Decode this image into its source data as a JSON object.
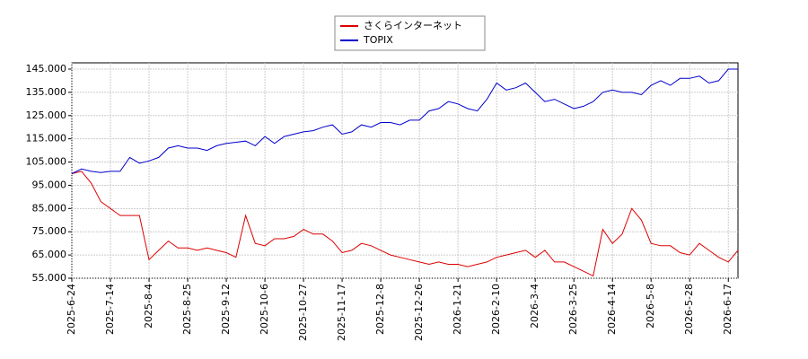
{
  "chart_data": {
    "type": "line",
    "categories": [
      "2025-6-24",
      null,
      null,
      null,
      "2025-7-14",
      null,
      null,
      null,
      "2025-8-4",
      null,
      null,
      null,
      "2025-8-25",
      null,
      null,
      null,
      "2025-9-12",
      null,
      null,
      null,
      "2025-10-6",
      null,
      null,
      null,
      "2025-10-27",
      null,
      null,
      null,
      "2025-11-17",
      null,
      null,
      null,
      "2025-12-8",
      null,
      null,
      null,
      "2025-12-26",
      null,
      null,
      null,
      "2026-1-21",
      null,
      null,
      null,
      "2026-2-10",
      null,
      null,
      null,
      "2026-3-4",
      null,
      null,
      null,
      "2026-3-25",
      null,
      null,
      null,
      "2026-4-14",
      null,
      null,
      null,
      "2026-5-8",
      null,
      null,
      null,
      "2026-5-28",
      null,
      null,
      null,
      "2026-6-17",
      null
    ],
    "series": [
      {
        "name": "さくらインターネット",
        "color": "#dd0000",
        "values": [
          100,
          101,
          96,
          88,
          85,
          82,
          82,
          82,
          63,
          67,
          71,
          68,
          68,
          67,
          68,
          67,
          66,
          64,
          82,
          70,
          69,
          72,
          72,
          73,
          76,
          74,
          74,
          71,
          66,
          67,
          70,
          69,
          67,
          65,
          64,
          63,
          62,
          61,
          62,
          61,
          61,
          60,
          61,
          62,
          64,
          65,
          66,
          67,
          64,
          67,
          62,
          62,
          60,
          58,
          56,
          76,
          70,
          74,
          85,
          80,
          70,
          69,
          69,
          66,
          65,
          70,
          67,
          64,
          62,
          67
        ]
      },
      {
        "name": "TOPIX",
        "color": "#0000cc",
        "values": [
          100,
          102,
          101,
          100.5,
          101,
          101,
          107,
          104.5,
          105.5,
          107,
          111,
          112,
          111,
          111,
          110,
          112,
          113,
          113.5,
          114,
          112,
          116,
          113,
          116,
          117,
          118,
          118.5,
          120,
          121,
          117,
          118,
          121,
          120,
          122,
          122,
          121,
          123,
          123,
          127,
          128,
          131,
          130,
          128,
          127,
          132,
          139,
          136,
          137,
          139,
          135,
          131,
          132,
          130,
          128,
          129,
          131,
          135,
          136,
          135,
          135,
          134,
          138,
          140,
          138,
          141,
          141,
          142,
          139,
          140,
          145,
          145
        ]
      }
    ],
    "ylim": [
      55,
      147.7
    ],
    "yticks": [
      {
        "value": 55,
        "label": "55.000"
      },
      {
        "value": 65,
        "label": "65.000"
      },
      {
        "value": 75,
        "label": "75.000"
      },
      {
        "value": 85,
        "label": "85.000"
      },
      {
        "value": 95,
        "label": "95.000"
      },
      {
        "value": 105,
        "label": "105.000"
      },
      {
        "value": 115,
        "label": "115.000"
      },
      {
        "value": 125,
        "label": "125.000"
      },
      {
        "value": 135,
        "label": "135.000"
      },
      {
        "value": 145,
        "label": "145.000"
      }
    ],
    "grid": true,
    "legend": "top"
  }
}
